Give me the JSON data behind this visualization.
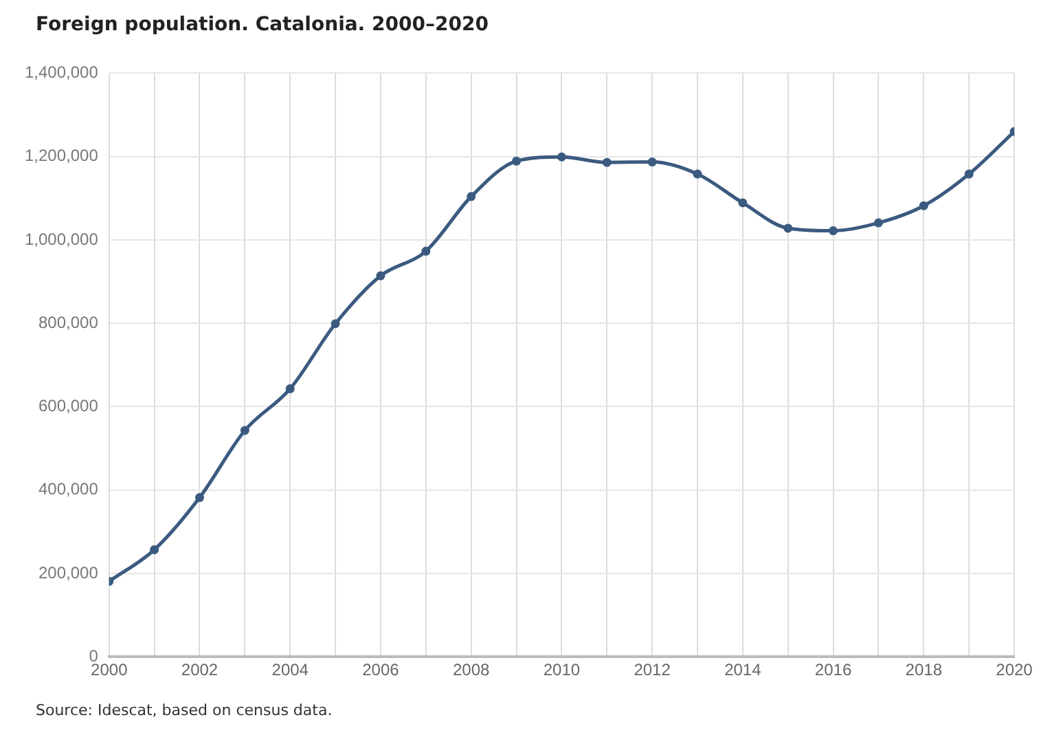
{
  "chart_data": {
    "type": "line",
    "title": "Foreign population. Catalonia. 2000–2020",
    "x": [
      2000,
      2001,
      2002,
      2003,
      2004,
      2005,
      2006,
      2007,
      2008,
      2009,
      2010,
      2011,
      2012,
      2013,
      2014,
      2015,
      2016,
      2017,
      2018,
      2019,
      2020
    ],
    "series": [
      {
        "color": "#3b5a80",
        "values": [
          181000,
          257000,
          382000,
          543000,
          643000,
          799000,
          914000,
          973000,
          1104000,
          1189000,
          1199000,
          1186000,
          1187000,
          1158000,
          1089000,
          1028000,
          1022000,
          1041000,
          1082000,
          1158000,
          1260000
        ]
      }
    ],
    "xlim": [
      2000,
      2020
    ],
    "xticks": [
      2000,
      {
        "value": 2001,
        "label": null
      },
      2002,
      {
        "value": 2003,
        "label": null
      },
      2004,
      {
        "value": 2005,
        "label": null
      },
      2006,
      {
        "value": 2007,
        "label": null
      },
      2008,
      {
        "value": 2009,
        "label": null
      },
      2010,
      {
        "value": 2011,
        "label": null
      },
      2012,
      {
        "value": 2013,
        "label": null
      },
      2014,
      {
        "value": 2015,
        "label": null
      },
      2016,
      {
        "value": 2017,
        "label": null
      },
      2018,
      {
        "value": 2019,
        "label": null
      },
      2020
    ],
    "ylim": [
      0,
      1400000
    ],
    "yticks": [
      {
        "value": 0,
        "label": "0"
      },
      {
        "value": 200000,
        "label": "200,000"
      },
      {
        "value": 400000,
        "label": "400,000"
      },
      {
        "value": 600000,
        "label": "600,000"
      },
      {
        "value": 800000,
        "label": "800,000"
      },
      {
        "value": 1000000,
        "label": "1,000,000"
      },
      {
        "value": 1200000,
        "label": "1,200,000"
      },
      {
        "value": 1400000,
        "label": "1,400,000"
      }
    ],
    "grid": true,
    "marker": "circle",
    "line_style": "solid",
    "annotations": [
      "Source: Idescat, based on census data."
    ]
  }
}
